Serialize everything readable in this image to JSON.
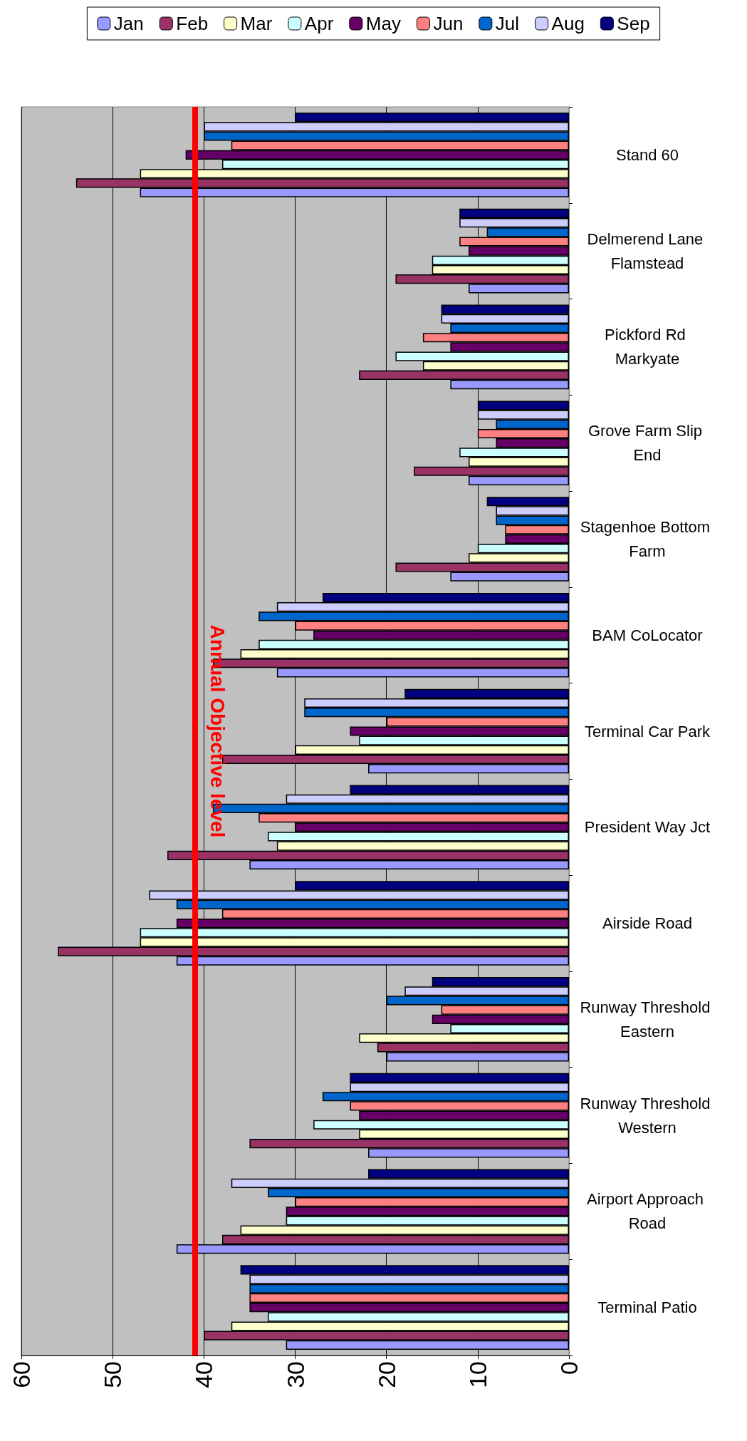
{
  "chart_data": {
    "type": "bar",
    "orientation": "horizontal",
    "categories": [
      "Stand 60",
      "Delmerend Lane Flamstead",
      "Pickford Rd Markyate",
      "Grove Farm Slip End",
      "Stagenhoe Bottom Farm",
      "BAM CoLocator",
      "Terminal Car Park",
      "President Way Jct",
      "Airside Road",
      "Runway Threshold Eastern",
      "Runway Threshold Western",
      "Airport Approach Road",
      "Terminal Patio"
    ],
    "series": [
      {
        "name": "Jan",
        "color": "#9999ff",
        "values": [
          47,
          11,
          13,
          11,
          13,
          32,
          22,
          35,
          43,
          20,
          22,
          43,
          31
        ]
      },
      {
        "name": "Feb",
        "color": "#993366",
        "values": [
          54,
          19,
          23,
          17,
          19,
          39,
          38,
          44,
          56,
          21,
          35,
          38,
          40
        ]
      },
      {
        "name": "Mar",
        "color": "#ffffcc",
        "values": [
          47,
          15,
          16,
          11,
          11,
          36,
          30,
          32,
          47,
          23,
          23,
          36,
          37
        ]
      },
      {
        "name": "Apr",
        "color": "#ccffff",
        "values": [
          38,
          15,
          19,
          12,
          10,
          34,
          23,
          33,
          47,
          13,
          28,
          31,
          33
        ]
      },
      {
        "name": "May",
        "color": "#660066",
        "values": [
          42,
          11,
          13,
          8,
          7,
          28,
          24,
          30,
          43,
          15,
          23,
          31,
          35
        ]
      },
      {
        "name": "Jun",
        "color": "#ff8080",
        "values": [
          37,
          12,
          16,
          10,
          7,
          30,
          20,
          34,
          38,
          14,
          24,
          30,
          35
        ]
      },
      {
        "name": "Jul",
        "color": "#0066cc",
        "values": [
          40,
          9,
          13,
          8,
          8,
          34,
          29,
          39,
          43,
          20,
          27,
          33,
          35
        ]
      },
      {
        "name": "Aug",
        "color": "#ccccff",
        "values": [
          40,
          12,
          14,
          10,
          8,
          32,
          29,
          31,
          46,
          18,
          24,
          37,
          35
        ]
      },
      {
        "name": "Sep",
        "color": "#000080",
        "values": [
          30,
          12,
          14,
          10,
          9,
          27,
          18,
          24,
          30,
          15,
          24,
          22,
          36
        ]
      }
    ],
    "xlim": [
      60,
      0
    ],
    "xticks": [
      0,
      10,
      20,
      30,
      40,
      50,
      60
    ],
    "ref_lines": [
      {
        "axis": "x",
        "value": 41,
        "label": "Annual Objective level",
        "color": "#ff0000"
      }
    ],
    "grid": "x",
    "legend": "top"
  }
}
